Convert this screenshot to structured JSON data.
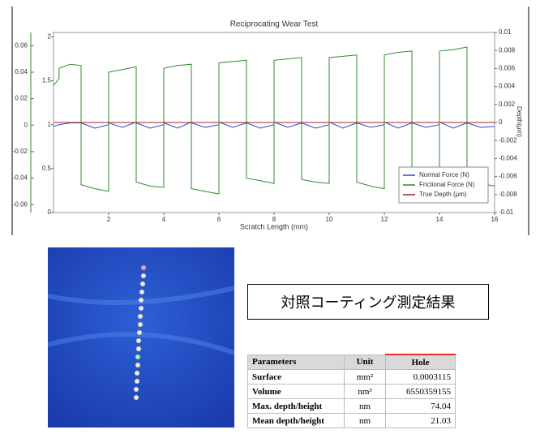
{
  "chart_data": {
    "type": "line",
    "title": "Reciprocating Wear Test",
    "x_label": "Scratch Length (mm)",
    "y3_label": "Depth(μm)",
    "x": [
      0,
      0.2,
      0.2,
      0.6,
      1,
      1,
      1.5,
      2,
      2,
      2.5,
      3,
      3,
      3.5,
      4,
      4,
      4.5,
      5,
      5,
      5.5,
      6,
      6,
      6.5,
      7,
      7,
      7.5,
      8,
      8,
      8.5,
      9,
      9,
      9.5,
      10,
      10,
      10.5,
      11,
      11,
      11.5,
      12,
      12,
      12.5,
      13,
      13,
      13.5,
      14,
      14,
      14.5,
      15,
      15,
      15.5,
      16
    ],
    "series": [
      {
        "name": "Normal Force (N)",
        "color": "#3344cc",
        "axis": "y2",
        "values": [
          0.98,
          1.0,
          1.0,
          1.02,
          1.02,
          1.02,
          0.96,
          1.0,
          1.02,
          0.97,
          1.03,
          1.02,
          0.96,
          1.0,
          1.02,
          0.96,
          1.03,
          1.02,
          0.97,
          1.0,
          1.03,
          0.97,
          1.02,
          1.02,
          0.96,
          1.0,
          1.03,
          0.97,
          1.02,
          1.02,
          0.96,
          1.0,
          1.03,
          0.96,
          1.02,
          1.02,
          0.97,
          1.0,
          1.03,
          0.96,
          1.02,
          1.02,
          0.97,
          1.0,
          1.03,
          0.96,
          1.02,
          1.02,
          0.97,
          0.98
        ]
      },
      {
        "name": "Frictional Force (N)",
        "color": "#2e8b2e",
        "axis": "y",
        "values": [
          0.03,
          0.035,
          0.043,
          0.046,
          0.045,
          -0.045,
          -0.048,
          -0.05,
          0.04,
          0.042,
          0.044,
          -0.043,
          -0.046,
          -0.047,
          0.043,
          0.045,
          0.046,
          -0.048,
          -0.05,
          -0.052,
          0.047,
          0.048,
          0.049,
          -0.04,
          -0.042,
          -0.044,
          0.049,
          0.05,
          0.051,
          -0.041,
          -0.043,
          -0.044,
          0.051,
          0.052,
          0.053,
          -0.043,
          -0.046,
          -0.048,
          0.053,
          0.055,
          0.056,
          -0.04,
          -0.042,
          -0.043,
          0.056,
          0.057,
          0.059,
          -0.043,
          -0.044,
          -0.046
        ]
      },
      {
        "name": "True Depth (μm)",
        "color": "#a0202a",
        "axis": "y3",
        "values": [
          0,
          0,
          0,
          0,
          0,
          0,
          0,
          0,
          0,
          0,
          0,
          0,
          0,
          0,
          0,
          0,
          0,
          0,
          0,
          0,
          0,
          0,
          0,
          0,
          0,
          0,
          0,
          0,
          0,
          0,
          0,
          0,
          0,
          0,
          0,
          0,
          0,
          0,
          0,
          0,
          0,
          0,
          0,
          0,
          0,
          0,
          0,
          0,
          0,
          0
        ]
      }
    ],
    "xlim": [
      0,
      16
    ],
    "xticks": [
      2,
      4,
      6,
      8,
      10,
      12,
      14,
      16
    ],
    "ylim": [
      -0.066,
      0.07
    ],
    "yticks": [
      -0.06,
      -0.04,
      -0.02,
      0,
      0.02,
      0.04,
      0.06
    ],
    "y2lim": [
      0,
      2.05
    ],
    "y2ticks": [
      0,
      0.5,
      1,
      1.5,
      2
    ],
    "y3lim": [
      -0.01,
      0.01
    ],
    "y3ticks": [
      -0.01,
      -0.008,
      -0.006,
      -0.004,
      -0.002,
      0,
      0.002,
      0.004,
      0.006,
      0.008,
      0.01
    ],
    "legend": "lower right"
  },
  "caption": "対照コーティング測定結果",
  "table": {
    "header": [
      "Parameters",
      "Unit",
      "Hole"
    ],
    "rows": [
      [
        "Surface",
        "mm²",
        "0.0003115"
      ],
      [
        "Volume",
        "nm³",
        "6550359155"
      ],
      [
        "Max. depth/height",
        "nm",
        "74.04"
      ],
      [
        "Mean depth/height",
        "nm",
        "21.03"
      ]
    ]
  }
}
